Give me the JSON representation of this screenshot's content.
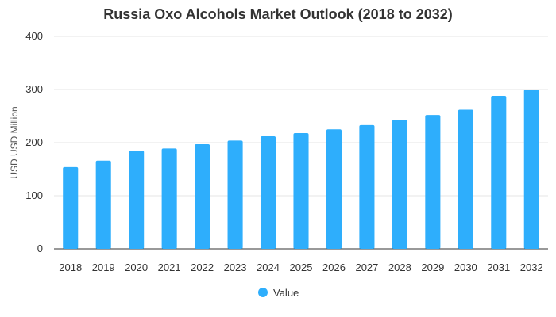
{
  "chart_data": {
    "type": "bar",
    "title": "Russia Oxo Alcohols Market Outlook (2018 to 2032)",
    "xlabel": "",
    "ylabel": "USD USD Million",
    "categories": [
      "2018",
      "2019",
      "2020",
      "2021",
      "2022",
      "2023",
      "2024",
      "2025",
      "2026",
      "2027",
      "2028",
      "2029",
      "2030",
      "2031",
      "2032"
    ],
    "series": [
      {
        "name": "Value",
        "values": [
          154,
          166,
          185,
          189,
          197,
          204,
          212,
          218,
          225,
          233,
          243,
          252,
          262,
          288,
          300
        ]
      }
    ],
    "ylim": [
      0,
      400
    ],
    "yticks": [
      0,
      100,
      200,
      300,
      400
    ],
    "grid": true,
    "legend_position": "bottom",
    "colors": {
      "bar": "#2eaefc",
      "grid": "#e6e6e6",
      "axis": "#333333"
    }
  }
}
